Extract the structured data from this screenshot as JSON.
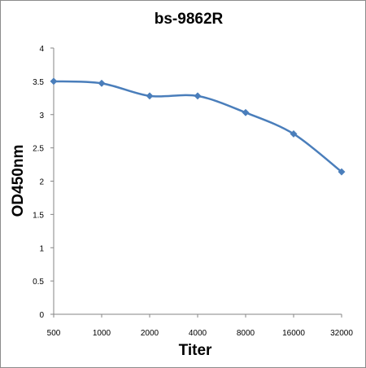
{
  "chart_data": {
    "type": "line",
    "title": "bs-9862R",
    "xlabel": "Titer",
    "ylabel": "OD450nm",
    "categories": [
      "500",
      "1000",
      "2000",
      "4000",
      "8000",
      "16000",
      "32000"
    ],
    "series": [
      {
        "values": [
          3.5,
          3.47,
          3.28,
          3.28,
          3.03,
          2.71,
          2.14
        ]
      }
    ],
    "ylim": [
      0,
      4
    ],
    "yticks": [
      "0",
      "0.5",
      "1",
      "1.5",
      "2",
      "2.5",
      "3",
      "3.5",
      "4"
    ],
    "grid": false,
    "legend": "none",
    "colors": {
      "series": "#4a7ebb",
      "axis": "#868686"
    }
  }
}
